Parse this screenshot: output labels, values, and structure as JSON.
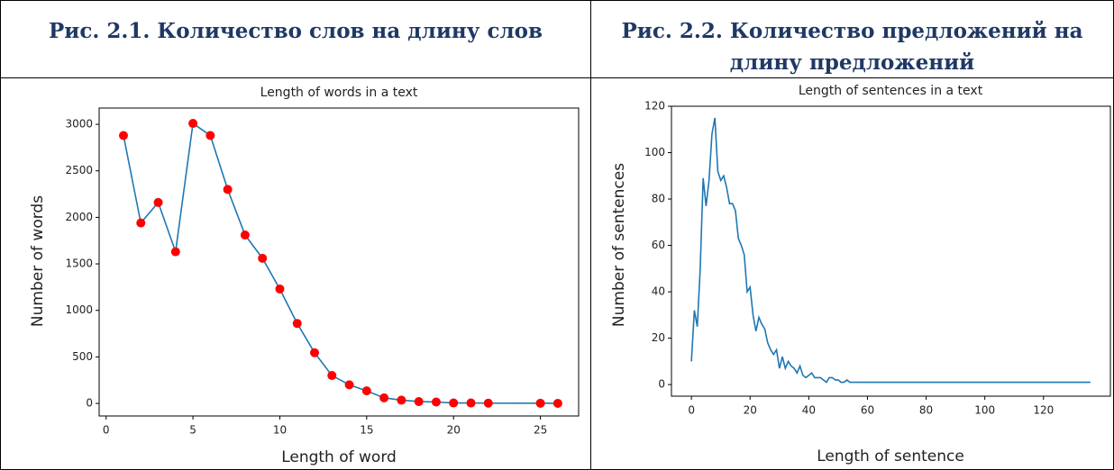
{
  "table": {
    "headers": [
      "Рис. 2.1. Количество слов на длину слов",
      "Рис. 2.2. Количество предложений на длину предложений"
    ]
  },
  "chart_data": [
    {
      "type": "line",
      "title": "Length of words in a text",
      "x_label": "Length of word",
      "y_label": "Number of words",
      "x": [
        1,
        2,
        3,
        4,
        5,
        6,
        7,
        8,
        9,
        10,
        11,
        12,
        13,
        14,
        15,
        16,
        17,
        18,
        19,
        20,
        21,
        22,
        25,
        26
      ],
      "values": [
        2880,
        1940,
        2160,
        1630,
        3010,
        2880,
        2300,
        1810,
        1560,
        1230,
        860,
        545,
        300,
        200,
        135,
        60,
        35,
        20,
        15,
        5,
        5,
        3,
        2,
        1
      ],
      "color": "#1f77b4",
      "marker_color": "#ff0000",
      "markers": true,
      "xlim": [
        -0.4,
        27.2
      ],
      "xticks": [
        0,
        5,
        10,
        15,
        20,
        25
      ],
      "ylim": [
        -135,
        3175
      ],
      "yticks": [
        0,
        500,
        1000,
        1500,
        2000,
        2500,
        3000
      ]
    },
    {
      "type": "line",
      "title": "Length of sentences in a text",
      "x_label": "Length of sentence",
      "y_label": "Number of sentences",
      "x": [
        0,
        1,
        2,
        3,
        4,
        5,
        6,
        7,
        8,
        9,
        10,
        11,
        12,
        13,
        14,
        15,
        16,
        17,
        18,
        19,
        20,
        21,
        22,
        23,
        24,
        25,
        26,
        27,
        28,
        29,
        30,
        31,
        32,
        33,
        34,
        35,
        36,
        37,
        38,
        39,
        40,
        41,
        42,
        43,
        44,
        45,
        46,
        47,
        48,
        49,
        50,
        51,
        52,
        53,
        54,
        55,
        56,
        57,
        58,
        59,
        60,
        61,
        62,
        63,
        64,
        65,
        66,
        67,
        68,
        69,
        70,
        71,
        72,
        73,
        74,
        75,
        76,
        77,
        78,
        79,
        80,
        81,
        82,
        83,
        84,
        85,
        86,
        87,
        88,
        89,
        90,
        91,
        92,
        93,
        94,
        95,
        96,
        97,
        98,
        99,
        100,
        101,
        102,
        103,
        104,
        105,
        106,
        107,
        108,
        109,
        110,
        111,
        112,
        113,
        114,
        115,
        116,
        117,
        118,
        119,
        120,
        121,
        122,
        123,
        124,
        125,
        126,
        127,
        128,
        129,
        130,
        131,
        132,
        133,
        134,
        135,
        136
      ],
      "values": [
        10,
        32,
        25,
        50,
        89,
        77,
        88,
        108,
        115,
        92,
        88,
        90,
        85,
        78,
        78,
        75,
        63,
        60,
        56,
        40,
        42,
        30,
        23,
        29,
        26,
        24,
        18,
        15,
        13,
        15,
        7,
        12,
        7,
        10,
        8,
        7,
        5,
        8,
        4,
        3,
        4,
        5,
        3,
        3,
        3,
        2,
        1,
        3,
        3,
        2,
        2,
        1,
        1,
        2,
        1,
        1,
        1,
        1,
        1,
        1,
        1,
        1,
        1,
        1,
        1,
        1,
        1,
        1,
        1,
        1,
        1,
        1,
        1,
        1,
        1,
        1,
        1,
        1,
        1,
        1,
        1,
        1,
        1,
        1,
        1,
        1,
        1,
        1,
        1,
        1,
        1,
        1,
        1,
        1,
        1,
        1,
        1,
        1,
        1,
        1,
        1,
        1,
        1,
        1,
        1,
        1,
        1,
        1,
        1,
        1,
        1,
        1,
        1,
        1,
        1,
        1,
        1,
        1,
        1,
        1,
        1,
        1,
        1,
        1,
        1,
        1,
        1,
        1,
        1,
        1,
        1,
        1,
        1,
        1,
        1,
        1,
        1
      ],
      "color": "#1f77b4",
      "markers": false,
      "xlim": [
        -6.8,
        142.8
      ],
      "xticks": [
        0,
        20,
        40,
        60,
        80,
        100,
        120
      ],
      "ylim": [
        -5,
        120
      ],
      "yticks": [
        0,
        20,
        40,
        60,
        80,
        100,
        120
      ]
    }
  ]
}
